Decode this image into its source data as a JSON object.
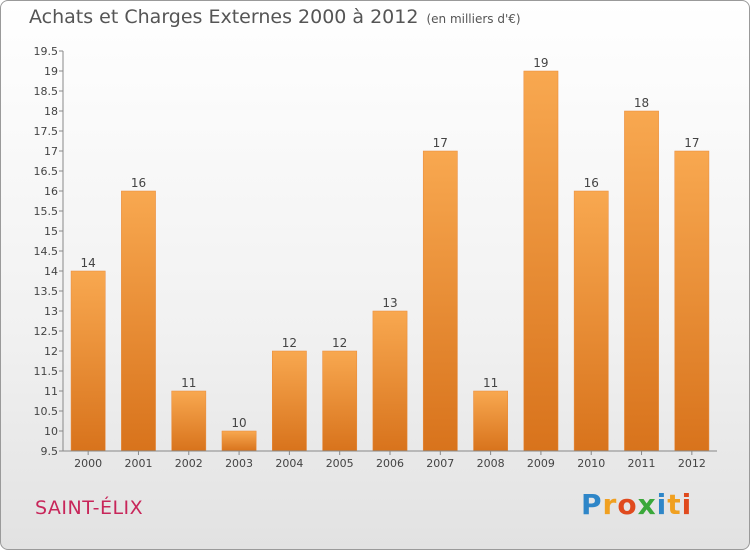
{
  "chart_data": {
    "type": "bar",
    "title": "Achats et Charges Externes 2000 à 2012",
    "subtitle": "(en milliers d'€)",
    "categories": [
      "2000",
      "2001",
      "2002",
      "2003",
      "2004",
      "2005",
      "2006",
      "2007",
      "2008",
      "2009",
      "2010",
      "2011",
      "2012"
    ],
    "values": [
      14,
      16,
      11,
      10,
      12,
      12,
      13,
      17,
      11,
      19,
      16,
      18,
      17
    ],
    "ylim": [
      9.5,
      19.5
    ],
    "yticks": [
      "9.5",
      "10",
      "10.5",
      "11",
      "11.5",
      "12",
      "12.5",
      "13",
      "13.5",
      "14",
      "14.5",
      "15",
      "15.5",
      "16",
      "16.5",
      "17",
      "17.5",
      "18",
      "18.5",
      "19",
      "19.5"
    ],
    "grid": false,
    "legend": "none",
    "bar_color": "#f39a3c"
  },
  "commune": "SAINT-ÉLIX",
  "logo": {
    "letters": [
      "P",
      "r",
      "o",
      "x",
      "i",
      "t",
      "i"
    ],
    "colors": [
      "#2e86c8",
      "#f0a020",
      "#e04a1e",
      "#3aa83a",
      "#2e86c8",
      "#f0a020",
      "#e04a1e"
    ]
  }
}
